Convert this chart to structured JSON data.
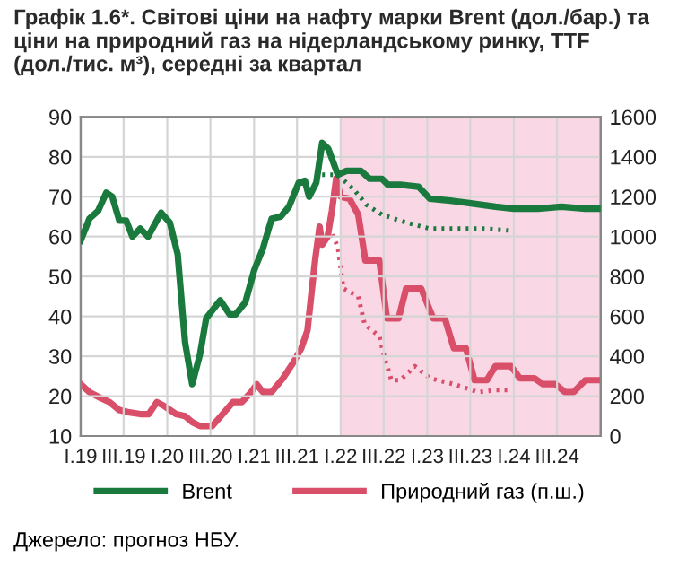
{
  "chart_data": {
    "type": "line",
    "title": "Графік 1.6*. Світові ціни на нафту марки Brent (дол./бар.) та ціни на природний газ на нідерландському ринку, TTF (дол./тис. м³), середні за квартал",
    "annotations": [
      "Джерело: прогноз НБУ."
    ],
    "xlim": [
      "2019-01-01",
      "2025-01-01"
    ],
    "xticks": [
      {
        "value": "2019-01-01",
        "label": "I.19"
      },
      {
        "value": "2019-07-01",
        "label": "III.19"
      },
      {
        "value": "2020-01-01",
        "label": "I.20"
      },
      {
        "value": "2020-07-01",
        "label": "III.20"
      },
      {
        "value": "2021-01-01",
        "label": "I.21"
      },
      {
        "value": "2021-07-01",
        "label": "III.21"
      },
      {
        "value": "2022-01-01",
        "label": "I.22"
      },
      {
        "value": "2022-07-01",
        "label": "III.22"
      },
      {
        "value": "2023-01-01",
        "label": "I.23"
      },
      {
        "value": "2023-07-01",
        "label": "III.23"
      },
      {
        "value": "2024-01-01",
        "label": "I.24"
      },
      {
        "value": "2024-07-01",
        "label": "III.24"
      }
    ],
    "ylim": [
      10,
      90
    ],
    "yticks": [
      10,
      20,
      30,
      40,
      50,
      60,
      70,
      80,
      90
    ],
    "y2lim": [
      0,
      1600
    ],
    "y2ticks": [
      0,
      200,
      400,
      600,
      800,
      1000,
      1200,
      1400,
      1600
    ],
    "grid": true,
    "legend": "bottom",
    "marker": "none",
    "bands": [
      {
        "axis": "x",
        "from": "2022-01-01",
        "to": "2025-01-01",
        "label": null,
        "color": "#fad7e5"
      }
    ],
    "series": [
      {
        "name": "Brent",
        "color": "#1a7a3e",
        "line_style": "solid",
        "x": [
          "2019-01-01",
          "2019-02-07",
          "2019-03-16",
          "2019-04-19",
          "2019-05-14",
          "2019-06-13",
          "2019-07-12",
          "2019-08-07",
          "2019-09-09",
          "2019-10-12",
          "2019-12-06",
          "2020-01-12",
          "2020-02-14",
          "2020-03-16",
          "2020-04-15",
          "2020-05-18",
          "2020-06-13",
          "2020-08-11",
          "2020-09-20",
          "2020-10-15",
          "2020-11-25",
          "2021-01-01",
          "2021-02-07",
          "2021-03-16",
          "2021-04-23",
          "2021-05-28",
          "2021-07-08",
          "2021-08-03",
          "2021-08-21",
          "2021-09-20",
          "2021-10-15",
          "2021-11-10",
          "2021-12-20",
          "2022-01-26",
          "2022-03-27",
          "2022-05-03",
          "2022-06-24",
          "2022-07-19",
          "2022-09-09",
          "2022-11-25",
          "2023-01-12",
          "2023-04-08",
          "2023-06-13",
          "2023-08-14",
          "2023-10-15",
          "2024-01-01",
          "2024-04-12",
          "2024-07-19",
          "2024-10-28",
          "2024-12-24"
        ],
        "values": [
          59,
          64.5,
          66.5,
          71,
          70,
          64,
          64,
          60,
          62,
          60,
          66,
          63.5,
          55.5,
          33.5,
          23,
          30.5,
          39.5,
          44,
          40.5,
          40.5,
          43.5,
          51.5,
          57,
          64.5,
          65,
          67.5,
          73.5,
          74,
          70,
          73.5,
          83.5,
          82,
          75.5,
          76.5,
          76.5,
          74.5,
          74.5,
          73,
          73,
          72.5,
          69.5,
          69,
          68.5,
          68,
          67.5,
          67,
          67,
          67.5,
          67,
          67
        ]
      },
      {
        "name": "Природний газ (п.ш.)",
        "color": "#d94f6a",
        "line_style": "solid",
        "axis": "y2",
        "x": [
          "2019-01-01",
          "2019-02-07",
          "2019-03-27",
          "2019-05-03",
          "2019-06-13",
          "2019-07-19",
          "2019-09-09",
          "2019-10-15",
          "2019-11-18",
          "2019-12-20",
          "2020-02-07",
          "2020-03-16",
          "2020-04-15",
          "2020-05-18",
          "2020-07-08",
          "2020-08-14",
          "2020-10-04",
          "2020-11-10",
          "2020-12-20",
          "2021-01-12",
          "2021-02-07",
          "2021-03-16",
          "2021-05-03",
          "2021-06-16",
          "2021-07-19",
          "2021-08-14",
          "2021-09-02",
          "2021-09-16",
          "2021-10-04",
          "2021-10-15",
          "2021-11-07",
          "2021-11-25",
          "2021-12-13",
          "2022-01-01",
          "2022-02-07",
          "2022-03-16",
          "2022-04-15",
          "2022-06-13",
          "2022-07-15",
          "2022-09-02",
          "2022-10-04",
          "2022-12-06",
          "2023-01-26",
          "2023-03-16",
          "2023-04-23",
          "2023-06-13",
          "2023-07-19",
          "2023-09-09",
          "2023-10-15",
          "2023-12-20",
          "2024-01-26",
          "2024-03-27",
          "2024-05-03",
          "2024-06-24",
          "2024-08-03",
          "2024-09-09",
          "2024-10-28",
          "2024-12-24"
        ],
        "values": [
          260,
          220,
          190,
          170,
          130,
          120,
          110,
          110,
          170,
          150,
          110,
          100,
          70,
          50,
          50,
          100,
          170,
          170,
          220,
          260,
          220,
          220,
          290,
          370,
          440,
          530,
          740,
          890,
          1050,
          960,
          1000,
          1130,
          1290,
          1200,
          1190,
          1110,
          880,
          880,
          590,
          590,
          740,
          740,
          590,
          590,
          440,
          440,
          280,
          280,
          350,
          350,
          290,
          290,
          260,
          260,
          220,
          220,
          280,
          280
        ]
      },
      {
        "color": "#1a7a3e",
        "line_style": "dotted",
        "x": [
          "2021-10-15",
          "2021-12-20",
          "2022-03-02",
          "2022-04-19",
          "2022-06-24",
          "2022-10-04",
          "2023-01-12",
          "2023-04-23",
          "2023-08-25",
          "2023-12-20"
        ],
        "values": [
          75.5,
          75.5,
          71.5,
          68,
          65.5,
          63.5,
          62,
          62,
          62,
          61.5
        ]
      },
      {
        "color": "#d94f6a",
        "line_style": "dotted",
        "axis": "y2",
        "x": [
          "2021-11-25",
          "2021-12-20",
          "2022-01-12",
          "2022-03-16",
          "2022-04-12",
          "2022-06-13",
          "2022-07-08",
          "2022-08-03",
          "2022-09-09",
          "2022-11-10",
          "2023-01-12",
          "2023-04-23",
          "2023-08-03",
          "2023-10-15",
          "2023-12-20"
        ],
        "values": [
          1010,
          950,
          740,
          700,
          560,
          500,
          380,
          280,
          280,
          350,
          290,
          260,
          220,
          230,
          230
        ]
      }
    ]
  }
}
